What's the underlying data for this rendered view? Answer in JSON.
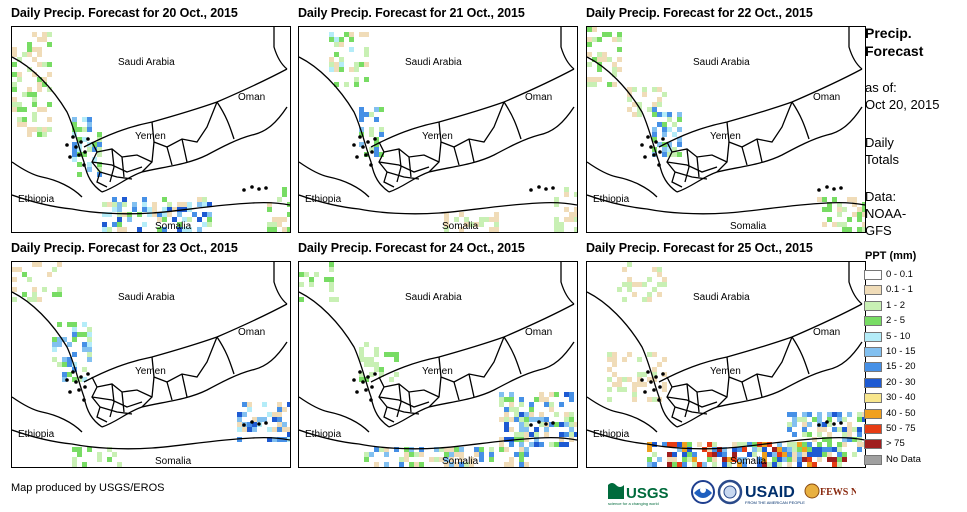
{
  "panels": [
    {
      "title": "Daily Precip. Forecast for 20 Oct., 2015"
    },
    {
      "title": "Daily Precip. Forecast for 21 Oct., 2015"
    },
    {
      "title": "Daily Precip. Forecast for 22 Oct., 2015"
    },
    {
      "title": "Daily Precip. Forecast for 23 Oct., 2015"
    },
    {
      "title": "Daily Precip. Forecast for 24 Oct., 2015"
    },
    {
      "title": "Daily Precip. Forecast for 25 Oct., 2015"
    }
  ],
  "map_labels": {
    "saudi": "Saudi Arabia",
    "oman": "Oman",
    "yemen": "Yemen",
    "ethiopia": "Ethiopia",
    "somalia": "Somalia"
  },
  "sidebar": {
    "title_line1": "Precip.",
    "title_line2": "Forecast",
    "asof_line1": "as of:",
    "asof_line2": "Oct 20, 2015",
    "daily_line1": "Daily",
    "daily_line2": "Totals",
    "data_line1": "Data:",
    "data_line2": "NOAA-",
    "data_line3": "GFS"
  },
  "legend": {
    "title": "PPT (mm)",
    "items": [
      {
        "label": "0 - 0.1",
        "color": "#ffffff"
      },
      {
        "label": "0.1 - 1",
        "color": "#f0dcb8"
      },
      {
        "label": "1 - 2",
        "color": "#c8f0b4"
      },
      {
        "label": "2 - 5",
        "color": "#78dc64"
      },
      {
        "label": "5 - 10",
        "color": "#b4ecf8"
      },
      {
        "label": "10 - 15",
        "color": "#82c0f0"
      },
      {
        "label": "15 - 20",
        "color": "#4690e6"
      },
      {
        "label": "20 - 30",
        "color": "#1e5ad2"
      },
      {
        "label": "30 - 40",
        "color": "#f8e68c"
      },
      {
        "label": "40 - 50",
        "color": "#f0a01e"
      },
      {
        "label": "50 - 75",
        "color": "#e63c14"
      },
      {
        "label": "> 75",
        "color": "#a01e1e"
      },
      {
        "label": "No Data",
        "color": "#a0a0a0"
      }
    ]
  },
  "credit": "Map produced by USGS/EROS",
  "logos": [
    "USGS",
    "NOAA",
    "USAID",
    "FEWS NET"
  ]
}
